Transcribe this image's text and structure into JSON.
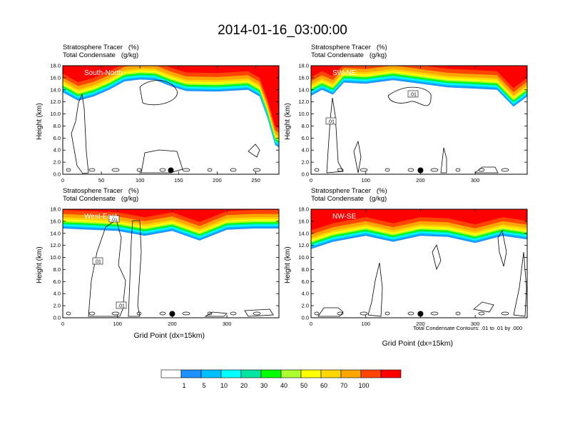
{
  "title": "2014-01-16_03:00:00",
  "panels": [
    {
      "id": "south-north",
      "line1": "Stratosphere Tracer   (%)",
      "line2": "Total Condensate   (g/kg)",
      "label": "South-North",
      "ylabel": "Height (km)",
      "xlabel": "",
      "xmax": 280,
      "xticks": [
        0,
        50,
        100,
        150,
        200,
        250
      ],
      "yticks": [
        "0.0",
        "2.0",
        "4.0",
        "6.0",
        "8.0",
        "10.0",
        "12.0",
        "14.0",
        "16.0",
        "18.0"
      ],
      "marker_x": 140,
      "contour_labels": []
    },
    {
      "id": "sw-ne",
      "line1": "Stratosphere Tracer   (%)",
      "line2": "Total Condensate   (g/kg)",
      "label": "SW-NE",
      "ylabel": "Height (km)",
      "xlabel": "",
      "xmax": 395,
      "xticks": [
        0,
        100,
        200,
        300
      ],
      "yticks": [
        "0.0",
        "2.0",
        "4.0",
        "6.0",
        "8.0",
        "10.0",
        "12.0",
        "14.0",
        "16.0",
        "18.0"
      ],
      "marker_x": 200,
      "contour_labels": [
        ".01",
        ".01"
      ]
    },
    {
      "id": "west-east",
      "line1": "Stratosphere Tracer   (%)",
      "line2": "Total Condensate   (g/kg)",
      "label": "West-East",
      "ylabel": "Height (km)",
      "xlabel": "Grid Point (dx=15km)",
      "xmax": 395,
      "xticks": [
        0,
        100,
        200,
        300
      ],
      "yticks": [
        "0.0",
        "2.0",
        "4.0",
        "6.0",
        "8.0",
        "10.0",
        "12.0",
        "14.0",
        "16.0",
        "18.0"
      ],
      "marker_x": 200,
      "contour_labels": [
        ".01",
        ".01",
        ".01"
      ]
    },
    {
      "id": "nw-se",
      "line1": "Stratosphere Tracer   (%)",
      "line2": "Total Condensate   (g/kg)",
      "label": "NW-SE",
      "ylabel": "Height (km)",
      "xlabel": "Grid Point (dx=15km)",
      "xmax": 395,
      "xticks": [
        0,
        100,
        200,
        300
      ],
      "yticks": [
        "0.0",
        "2.0",
        "4.0",
        "6.0",
        "8.0",
        "10.0",
        "12.0",
        "14.0",
        "16.0",
        "18.0"
      ],
      "marker_x": 200,
      "contour_labels": []
    }
  ],
  "footnote": "Total Condensate Contours: .01 to .01 by .000",
  "colorbar": {
    "labels": [
      "1",
      "5",
      "10",
      "20",
      "30",
      "40",
      "50",
      "60",
      "70",
      "100"
    ],
    "colors": [
      "#ffffff",
      "#1e90ff",
      "#00bfff",
      "#00ffff",
      "#00e6a0",
      "#00ff00",
      "#adff2f",
      "#ffff00",
      "#ffd700",
      "#ffa500",
      "#ff4500",
      "#ff0000"
    ]
  },
  "chart_data": [
    {
      "type": "heatmap",
      "title": "South-North",
      "xlabel": "",
      "ylabel": "Height (km)",
      "xlim": [
        0,
        280
      ],
      "ylim": [
        0,
        18
      ],
      "tropopause_height_km": [
        [
          0,
          14.2
        ],
        [
          20,
          12.8
        ],
        [
          40,
          13.5
        ],
        [
          60,
          14.6
        ],
        [
          80,
          16.0
        ],
        [
          100,
          16.3
        ],
        [
          120,
          16.2
        ],
        [
          140,
          15.2
        ],
        [
          160,
          14.4
        ],
        [
          200,
          14.3
        ],
        [
          240,
          14.6
        ],
        [
          255,
          13.5
        ],
        [
          265,
          10.0
        ],
        [
          275,
          5.5
        ],
        [
          280,
          5.0
        ]
      ]
    },
    {
      "type": "heatmap",
      "title": "SW-NE",
      "xlabel": "",
      "ylabel": "Height (km)",
      "xlim": [
        0,
        395
      ],
      "ylim": [
        0,
        18
      ],
      "tropopause_height_km": [
        [
          0,
          13.6
        ],
        [
          20,
          14.6
        ],
        [
          40,
          13.8
        ],
        [
          60,
          15.8
        ],
        [
          100,
          15.6
        ],
        [
          150,
          16.2
        ],
        [
          200,
          15.6
        ],
        [
          250,
          15.0
        ],
        [
          300,
          14.8
        ],
        [
          340,
          14.6
        ],
        [
          370,
          11.8
        ],
        [
          395,
          13.5
        ]
      ]
    },
    {
      "type": "heatmap",
      "title": "West-East",
      "xlabel": "Grid Point (dx=15km)",
      "ylabel": "Height (km)",
      "xlim": [
        0,
        395
      ],
      "ylim": [
        0,
        18
      ],
      "tropopause_height_km": [
        [
          0,
          15.4
        ],
        [
          50,
          15.2
        ],
        [
          100,
          15.0
        ],
        [
          150,
          14.2
        ],
        [
          200,
          15.0
        ],
        [
          250,
          13.4
        ],
        [
          300,
          15.2
        ],
        [
          350,
          15.4
        ],
        [
          395,
          15.4
        ]
      ]
    },
    {
      "type": "heatmap",
      "title": "NW-SE",
      "xlabel": "Grid Point (dx=15km)",
      "ylabel": "Height (km)",
      "xlim": [
        0,
        395
      ],
      "ylim": [
        0,
        18
      ],
      "tropopause_height_km": [
        [
          0,
          12.0
        ],
        [
          40,
          13.2
        ],
        [
          100,
          14.2
        ],
        [
          150,
          13.2
        ],
        [
          200,
          14.2
        ],
        [
          250,
          14.0
        ],
        [
          300,
          13.0
        ],
        [
          350,
          14.2
        ],
        [
          395,
          13.6
        ]
      ]
    }
  ]
}
